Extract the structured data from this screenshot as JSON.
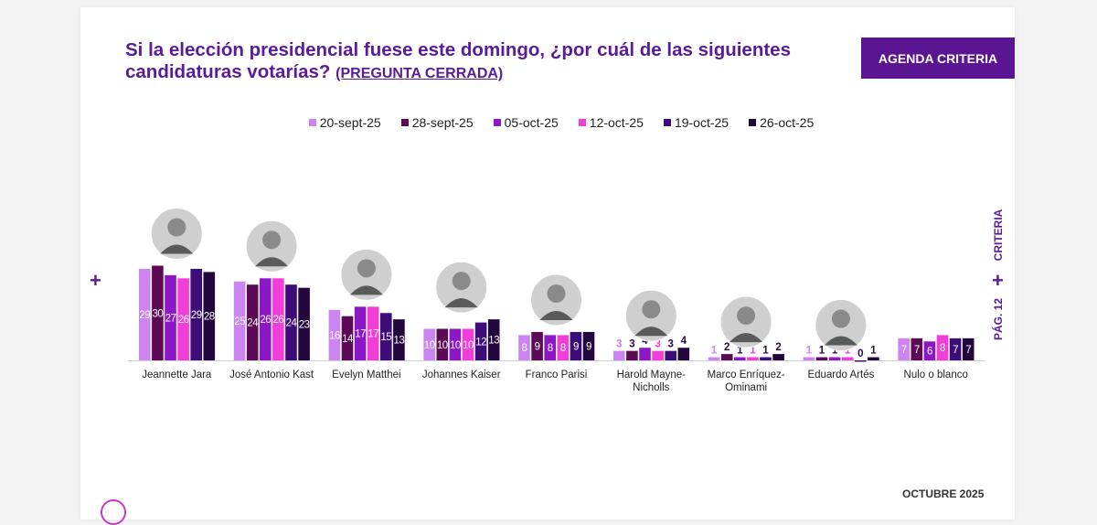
{
  "header": {
    "title": "Si la elección presidencial fuese este domingo, ¿por cuál de las siguientes candidaturas votarías?",
    "subtitle": "(PREGUNTA CERRADA)",
    "badge": "AGENDA CRITERIA"
  },
  "side": {
    "brand": "CRITERIA",
    "page": "PÁG. 12",
    "plus": "+"
  },
  "footer": {
    "date": "OCTUBRE 2025"
  },
  "chart_data": {
    "type": "bar",
    "title": "Si la elección presidencial fuese este domingo, ¿por cuál de las siguientes candidaturas votarías? (PREGUNTA CERRADA)",
    "categories": [
      "Jeannette Jara",
      "José Antonio Kast",
      "Evelyn Matthei",
      "Johannes Kaiser",
      "Franco Parisi",
      "Harold Mayne-Nicholls",
      "Marco Enríquez-Ominami",
      "Eduardo Artés",
      "Nulo o blanco"
    ],
    "series": [
      {
        "name": "20-sept-25",
        "color": "#cc84f0",
        "values": [
          29,
          25,
          16,
          10,
          8,
          3,
          1,
          1,
          7
        ]
      },
      {
        "name": "28-sept-25",
        "color": "#5c0a56",
        "values": [
          30,
          24,
          14,
          10,
          9,
          3,
          2,
          1,
          7
        ]
      },
      {
        "name": "05-oct-25",
        "color": "#8b17c6",
        "values": [
          27,
          26,
          17,
          10,
          8,
          4,
          1,
          1,
          6
        ]
      },
      {
        "name": "12-oct-25",
        "color": "#f23ed8",
        "values": [
          26,
          26,
          17,
          10,
          8,
          3,
          1,
          1,
          8
        ]
      },
      {
        "name": "19-oct-25",
        "color": "#3c0c78",
        "values": [
          29,
          24,
          15,
          12,
          9,
          3,
          1,
          0,
          7
        ]
      },
      {
        "name": "26-oct-25",
        "color": "#22063c",
        "values": [
          28,
          23,
          13,
          13,
          9,
          4,
          2,
          1,
          7
        ]
      }
    ],
    "ylim": [
      0,
      30
    ],
    "xlabel": "",
    "ylabel": ""
  }
}
